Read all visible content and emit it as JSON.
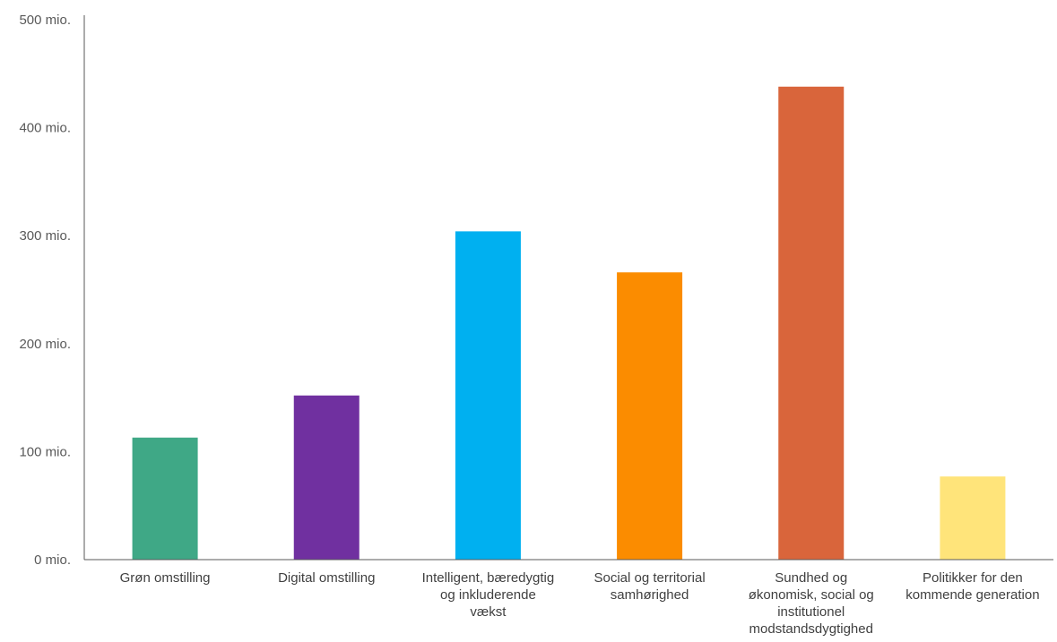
{
  "chart_data": {
    "type": "bar",
    "title": "",
    "xlabel": "",
    "ylabel": "",
    "ylim": [
      0,
      500
    ],
    "grid": false,
    "legend": "none",
    "y_ticks": [
      {
        "value": 0,
        "label": "0 mio."
      },
      {
        "value": 100,
        "label": "100 mio."
      },
      {
        "value": 200,
        "label": "200 mio."
      },
      {
        "value": 300,
        "label": "300 mio."
      },
      {
        "value": 400,
        "label": "400 mio."
      },
      {
        "value": 500,
        "label": "500 mio."
      }
    ],
    "categories": [
      "Grøn omstilling",
      "Digital omstilling",
      "Intelligent, bæredygtig og inkluderende vækst",
      "Social og territorial samhørighed",
      "Sundhed og økonomisk, social og institutionel modstandsdygtighed",
      "Politikker for den kommende generation"
    ],
    "category_lines": [
      [
        "Grøn omstilling"
      ],
      [
        "Digital omstilling"
      ],
      [
        "Intelligent, bæredygtig",
        "og inkluderende",
        "vækst"
      ],
      [
        "Social og territorial",
        "samhørighed"
      ],
      [
        "Sundhed og",
        "økonomisk, social og",
        "institutionel",
        "modstandsdygtighed"
      ],
      [
        "Politikker for den",
        "kommende generation"
      ]
    ],
    "values": [
      113,
      152,
      304,
      266,
      438,
      77
    ],
    "colors": [
      "#3FA886",
      "#7030A0",
      "#00B0F0",
      "#FB8C00",
      "#D9653B",
      "#FFE47A"
    ],
    "axis_color": "#595959"
  }
}
